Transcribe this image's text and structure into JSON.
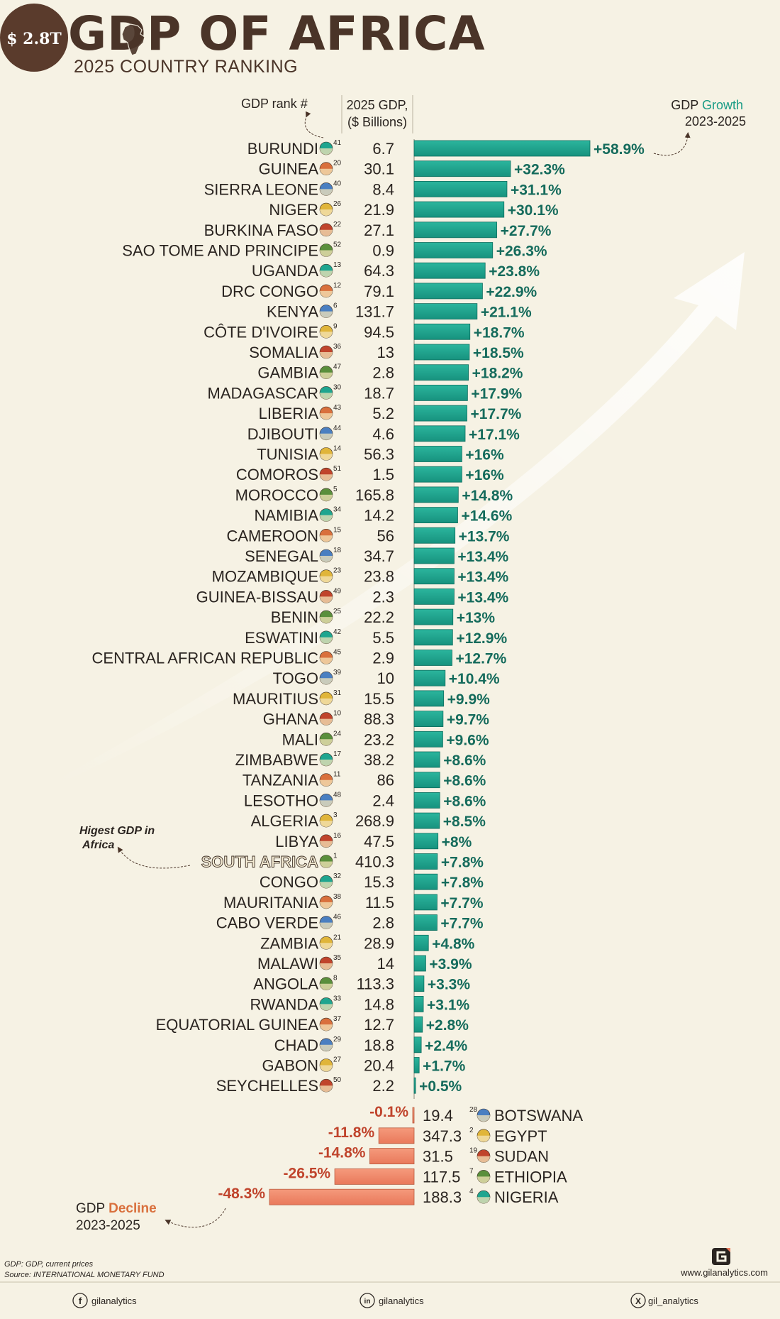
{
  "header": {
    "badge": "$ 2.8T",
    "title": "GDP OF AFRICA",
    "subtitle": "2025 COUNTRY RANKING"
  },
  "columns": {
    "rank_label": "GDP rank #",
    "gdp_label_1": "2025 GDP,",
    "gdp_label_2": "($ Billions)",
    "growth_label_1": "GDP ",
    "growth_label_2": "Growth",
    "growth_period": "2023-2025"
  },
  "annotations": {
    "highest_1": "Higest GDP in",
    "highest_2": "Africa",
    "decline_1": "GDP ",
    "decline_2": "Decline",
    "decline_period": "2023-2025"
  },
  "colors": {
    "positive": "#1fa58f",
    "negative": "#f08a6c",
    "title": "#4a3428"
  },
  "chart_data": {
    "type": "bar",
    "title": "GDP OF AFRICA - 2025 COUNTRY RANKING",
    "xlabel": "GDP Growth 2023-2025 (%)",
    "ylabel": "",
    "units": {
      "gdp": "$ Billions",
      "growth": "%"
    },
    "growth_series": [
      {
        "country": "BURUNDI",
        "rank": 41,
        "gdp": "6.7",
        "growth": 58.9,
        "label": "+58.9%"
      },
      {
        "country": "GUINEA",
        "rank": 20,
        "gdp": "30.1",
        "growth": 32.3,
        "label": "+32.3%"
      },
      {
        "country": "SIERRA LEONE",
        "rank": 40,
        "gdp": "8.4",
        "growth": 31.1,
        "label": "+31.1%"
      },
      {
        "country": "NIGER",
        "rank": 26,
        "gdp": "21.9",
        "growth": 30.1,
        "label": "+30.1%"
      },
      {
        "country": "BURKINA FASO",
        "rank": 22,
        "gdp": "27.1",
        "growth": 27.7,
        "label": "+27.7%"
      },
      {
        "country": "SAO TOME AND PRINCIPE",
        "rank": 52,
        "gdp": "0.9",
        "growth": 26.3,
        "label": "+26.3%"
      },
      {
        "country": "UGANDA",
        "rank": 13,
        "gdp": "64.3",
        "growth": 23.8,
        "label": "+23.8%"
      },
      {
        "country": "DRC CONGO",
        "rank": 12,
        "gdp": "79.1",
        "growth": 22.9,
        "label": "+22.9%"
      },
      {
        "country": "KENYA",
        "rank": 6,
        "gdp": "131.7",
        "growth": 21.1,
        "label": "+21.1%"
      },
      {
        "country": "CÔTE D'IVOIRE",
        "rank": 9,
        "gdp": "94.5",
        "growth": 18.7,
        "label": "+18.7%"
      },
      {
        "country": "SOMALIA",
        "rank": 36,
        "gdp": "13",
        "growth": 18.5,
        "label": "+18.5%"
      },
      {
        "country": "GAMBIA",
        "rank": 47,
        "gdp": "2.8",
        "growth": 18.2,
        "label": "+18.2%"
      },
      {
        "country": "MADAGASCAR",
        "rank": 30,
        "gdp": "18.7",
        "growth": 17.9,
        "label": "+17.9%"
      },
      {
        "country": "LIBERIA",
        "rank": 43,
        "gdp": "5.2",
        "growth": 17.7,
        "label": "+17.7%"
      },
      {
        "country": "DJIBOUTI",
        "rank": 44,
        "gdp": "4.6",
        "growth": 17.1,
        "label": "+17.1%"
      },
      {
        "country": "TUNISIA",
        "rank": 14,
        "gdp": "56.3",
        "growth": 16,
        "label": "+16%"
      },
      {
        "country": "COMOROS",
        "rank": 51,
        "gdp": "1.5",
        "growth": 16,
        "label": "+16%"
      },
      {
        "country": "MOROCCO",
        "rank": 5,
        "gdp": "165.8",
        "growth": 14.8,
        "label": "+14.8%"
      },
      {
        "country": "NAMIBIA",
        "rank": 34,
        "gdp": "14.2",
        "growth": 14.6,
        "label": "+14.6%"
      },
      {
        "country": "CAMEROON",
        "rank": 15,
        "gdp": "56",
        "growth": 13.7,
        "label": "+13.7%"
      },
      {
        "country": "SENEGAL",
        "rank": 18,
        "gdp": "34.7",
        "growth": 13.4,
        "label": "+13.4%"
      },
      {
        "country": "MOZAMBIQUE",
        "rank": 23,
        "gdp": "23.8",
        "growth": 13.4,
        "label": "+13.4%"
      },
      {
        "country": "GUINEA-BISSAU",
        "rank": 49,
        "gdp": "2.3",
        "growth": 13.4,
        "label": "+13.4%"
      },
      {
        "country": "BENIN",
        "rank": 25,
        "gdp": "22.2",
        "growth": 13,
        "label": "+13%"
      },
      {
        "country": "ESWATINI",
        "rank": 42,
        "gdp": "5.5",
        "growth": 12.9,
        "label": "+12.9%"
      },
      {
        "country": "CENTRAL AFRICAN REPUBLIC",
        "rank": 45,
        "gdp": "2.9",
        "growth": 12.7,
        "label": "+12.7%"
      },
      {
        "country": "TOGO",
        "rank": 39,
        "gdp": "10",
        "growth": 10.4,
        "label": "+10.4%"
      },
      {
        "country": "MAURITIUS",
        "rank": 31,
        "gdp": "15.5",
        "growth": 9.9,
        "label": "+9.9%"
      },
      {
        "country": "GHANA",
        "rank": 10,
        "gdp": "88.3",
        "growth": 9.7,
        "label": "+9.7%"
      },
      {
        "country": "MALI",
        "rank": 24,
        "gdp": "23.2",
        "growth": 9.6,
        "label": "+9.6%"
      },
      {
        "country": "ZIMBABWE",
        "rank": 17,
        "gdp": "38.2",
        "growth": 8.6,
        "label": "+8.6%"
      },
      {
        "country": "TANZANIA",
        "rank": 11,
        "gdp": "86",
        "growth": 8.6,
        "label": "+8.6%"
      },
      {
        "country": "LESOTHO",
        "rank": 48,
        "gdp": "2.4",
        "growth": 8.6,
        "label": "+8.6%"
      },
      {
        "country": "ALGERIA",
        "rank": 3,
        "gdp": "268.9",
        "growth": 8.5,
        "label": "+8.5%"
      },
      {
        "country": "LIBYA",
        "rank": 16,
        "gdp": "47.5",
        "growth": 8,
        "label": "+8%"
      },
      {
        "country": "SOUTH AFRICA",
        "rank": 1,
        "gdp": "410.3",
        "growth": 7.8,
        "label": "+7.8%"
      },
      {
        "country": "CONGO",
        "rank": 32,
        "gdp": "15.3",
        "growth": 7.8,
        "label": "+7.8%"
      },
      {
        "country": "MAURITANIA",
        "rank": 38,
        "gdp": "11.5",
        "growth": 7.7,
        "label": "+7.7%"
      },
      {
        "country": "CABO VERDE",
        "rank": 46,
        "gdp": "2.8",
        "growth": 7.7,
        "label": "+7.7%"
      },
      {
        "country": "ZAMBIA",
        "rank": 21,
        "gdp": "28.9",
        "growth": 4.8,
        "label": "+4.8%"
      },
      {
        "country": "MALAWI",
        "rank": 35,
        "gdp": "14",
        "growth": 3.9,
        "label": "+3.9%"
      },
      {
        "country": "ANGOLA",
        "rank": 8,
        "gdp": "113.3",
        "growth": 3.3,
        "label": "+3.3%"
      },
      {
        "country": "RWANDA",
        "rank": 33,
        "gdp": "14.8",
        "growth": 3.1,
        "label": "+3.1%"
      },
      {
        "country": "EQUATORIAL GUINEA",
        "rank": 37,
        "gdp": "12.7",
        "growth": 2.8,
        "label": "+2.8%"
      },
      {
        "country": "CHAD",
        "rank": 29,
        "gdp": "18.8",
        "growth": 2.4,
        "label": "+2.4%"
      },
      {
        "country": "GABON",
        "rank": 27,
        "gdp": "20.4",
        "growth": 1.7,
        "label": "+1.7%"
      },
      {
        "country": "SEYCHELLES",
        "rank": 50,
        "gdp": "2.2",
        "growth": 0.5,
        "label": "+0.5%"
      }
    ],
    "decline_series": [
      {
        "country": "BOTSWANA",
        "rank": 28,
        "gdp": "19.4",
        "growth": -0.1,
        "label": "-0.1%"
      },
      {
        "country": "EGYPT",
        "rank": 2,
        "gdp": "347.3",
        "growth": -11.8,
        "label": "-11.8%"
      },
      {
        "country": "SUDAN",
        "rank": 19,
        "gdp": "31.5",
        "growth": -14.8,
        "label": "-14.8%"
      },
      {
        "country": "ETHIOPIA",
        "rank": 7,
        "gdp": "117.5",
        "growth": -26.5,
        "label": "-26.5%"
      },
      {
        "country": "NIGERIA",
        "rank": 4,
        "gdp": "188.3",
        "growth": -48.3,
        "label": "-48.3%"
      }
    ]
  },
  "footer": {
    "note_1": "GDP: GDP, current prices",
    "note_2": "Source: INTERNATIONAL MONETARY FUND",
    "website": "www.gilanalytics.com",
    "facebook": "gilanalytics",
    "linkedin": "gilanalytics",
    "x": "gil_analytics"
  }
}
